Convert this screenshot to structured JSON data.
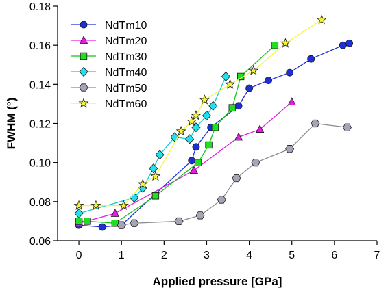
{
  "chart_data": {
    "type": "line",
    "xlabel": "Applied pressure [GPa]",
    "ylabel": "FWHM (°)",
    "xlim": [
      -0.5,
      7
    ],
    "ylim": [
      0.06,
      0.18
    ],
    "xticks": [
      "0",
      "1",
      "2",
      "3",
      "4",
      "5",
      "6",
      "7"
    ],
    "yticks": [
      "0.06",
      "0.08",
      "0.10",
      "0.12",
      "0.14",
      "0.16",
      "0.18"
    ],
    "grid": false,
    "legend_position": "top-left",
    "series": [
      {
        "name": "NdTm10",
        "color": "#1f2fd6",
        "marker": "circle",
        "markerColor": "#1f2fd6",
        "x": [
          0.0,
          0.55,
          1.0,
          2.65,
          2.75,
          3.1,
          3.75,
          4.0,
          4.45,
          4.95,
          5.45,
          6.2,
          6.35
        ],
        "y": [
          0.068,
          0.067,
          0.068,
          0.101,
          0.108,
          0.118,
          0.129,
          0.138,
          0.142,
          0.146,
          0.153,
          0.16,
          0.161
        ]
      },
      {
        "name": "NdTm20",
        "color": "#e21ee2",
        "marker": "triangle",
        "markerColor": "#e21ee2",
        "x": [
          0.0,
          0.85,
          2.7,
          3.75,
          4.25,
          5.0
        ],
        "y": [
          0.069,
          0.074,
          0.096,
          0.113,
          0.117,
          0.131
        ]
      },
      {
        "name": "NdTm30",
        "color": "#17c217",
        "marker": "square",
        "markerColor": "#22dd22",
        "x": [
          0.0,
          0.2,
          0.85,
          1.8,
          2.8,
          3.05,
          3.2,
          3.6,
          3.8,
          4.6
        ],
        "y": [
          0.07,
          0.07,
          0.069,
          0.083,
          0.1,
          0.109,
          0.118,
          0.128,
          0.144,
          0.16
        ]
      },
      {
        "name": "NdTm40",
        "color": "#11c9d4",
        "marker": "diamond",
        "markerColor": "#22e0ec",
        "x": [
          0.0,
          1.3,
          1.5,
          1.75,
          1.9,
          2.25,
          2.6,
          2.75,
          3.0,
          3.15,
          3.45
        ],
        "y": [
          0.074,
          0.082,
          0.087,
          0.097,
          0.104,
          0.113,
          0.112,
          0.118,
          0.124,
          0.129,
          0.144
        ]
      },
      {
        "name": "NdTm50",
        "color": "#8a8a8a",
        "marker": "hexagon",
        "markerColor": "#a5a5b8",
        "x": [
          1.0,
          1.3,
          2.35,
          2.85,
          3.35,
          3.7,
          4.15,
          4.95,
          5.55,
          6.3
        ],
        "y": [
          0.068,
          0.069,
          0.07,
          0.073,
          0.081,
          0.092,
          0.1,
          0.107,
          0.12,
          0.118
        ]
      },
      {
        "name": "NdTm60",
        "color": "#f5f537",
        "marker": "star",
        "markerColor": "#f5f537",
        "x": [
          0.0,
          0.4,
          1.05,
          1.5,
          1.8,
          2.4,
          2.65,
          2.75,
          2.95,
          3.55,
          4.1,
          4.85,
          5.7
        ],
        "y": [
          0.078,
          0.078,
          0.078,
          0.089,
          0.093,
          0.116,
          0.121,
          0.124,
          0.132,
          0.14,
          0.147,
          0.161,
          0.173
        ]
      }
    ]
  }
}
